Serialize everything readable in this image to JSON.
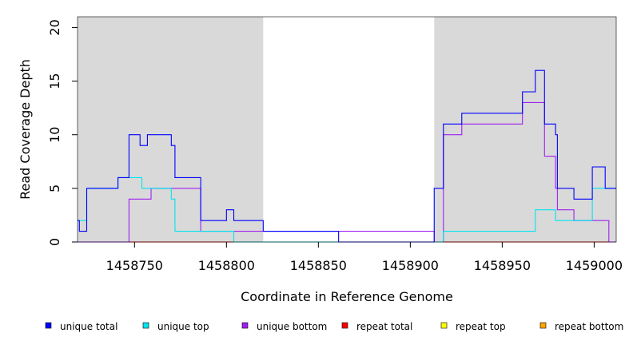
{
  "chart_data": {
    "type": "line",
    "line_style": "step",
    "xlabel": "Coordinate in Reference Genome",
    "ylabel": "Read Coverage Depth",
    "xlim": [
      1458719,
      1459012
    ],
    "ylim": [
      0,
      21
    ],
    "xticks": [
      1458750,
      1458800,
      1458850,
      1458900,
      1458950,
      1459000
    ],
    "xtick_labels": [
      "1458750",
      "1458800",
      "1458850",
      "1458900",
      "1458950",
      "1459000"
    ],
    "yticks": [
      0,
      5,
      10,
      15,
      20
    ],
    "ytick_labels": [
      "0",
      "5",
      "10",
      "15",
      "20"
    ],
    "grid": false,
    "shaded_regions": [
      {
        "x0": 1458719,
        "x1": 1458820,
        "color": "#d9d9d9"
      },
      {
        "x0": 1458913,
        "x1": 1459012,
        "color": "#d9d9d9"
      }
    ],
    "legend_position": "bottom",
    "series": [
      {
        "name": "unique total",
        "color": "#0000ff",
        "x": [
          1458719,
          1458720,
          1458724,
          1458741,
          1458747,
          1458753,
          1458757,
          1458770,
          1458772,
          1458786,
          1458800,
          1458804,
          1458820,
          1458861,
          1458913,
          1458918,
          1458928,
          1458961,
          1458968,
          1458973,
          1458979,
          1458980,
          1458989,
          1458999,
          1459006,
          1459012
        ],
        "y": [
          2,
          1,
          5,
          6,
          10,
          9,
          10,
          9,
          6,
          2,
          3,
          2,
          1,
          0,
          5,
          11,
          12,
          14,
          16,
          11,
          10,
          5,
          4,
          7,
          5,
          5
        ]
      },
      {
        "name": "unique top",
        "color": "#00e5ee",
        "x": [
          1458719,
          1458724,
          1458741,
          1458754,
          1458759,
          1458770,
          1458772,
          1458804,
          1458913,
          1458918,
          1458968,
          1458979,
          1458999,
          1459012
        ],
        "y": [
          2,
          5,
          6,
          5,
          5,
          4,
          1,
          0,
          0,
          1,
          3,
          2,
          5,
          5
        ]
      },
      {
        "name": "unique bottom",
        "color": "#a020f0",
        "x": [
          1458719,
          1458747,
          1458759,
          1458786,
          1458800,
          1458861,
          1458913,
          1458918,
          1458928,
          1458961,
          1458973,
          1458979,
          1458980,
          1458989,
          1459008,
          1459012
        ],
        "y": [
          0,
          4,
          5,
          1,
          1,
          1,
          0,
          10,
          11,
          13,
          8,
          5,
          3,
          2,
          0,
          0
        ]
      },
      {
        "name": "repeat total",
        "color": "#ff0000",
        "x": [
          1458719,
          1459012
        ],
        "y": [
          0,
          0
        ]
      },
      {
        "name": "repeat top",
        "color": "#ffff00",
        "x": [
          1458719,
          1459012
        ],
        "y": [
          0,
          0
        ]
      },
      {
        "name": "repeat bottom",
        "color": "#ffa500",
        "x": [
          1458747,
          1459012
        ],
        "y": [
          0,
          0
        ]
      }
    ]
  }
}
